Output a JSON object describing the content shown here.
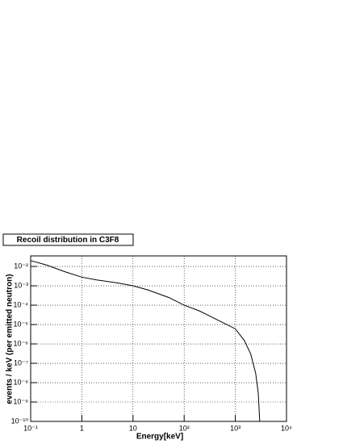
{
  "chart_data": {
    "type": "line",
    "title": "Recoil distribution in C3F8",
    "x_label": "Energy[keV]",
    "y_label": "events / keV (per emitted neutron)",
    "log_x": true,
    "log_y": true,
    "grid": true,
    "x": [
      0.1,
      0.2,
      0.5,
      1,
      2,
      5,
      10,
      20,
      50,
      100,
      200,
      500,
      1000,
      1500,
      2000,
      2500,
      2800,
      3000
    ],
    "series": [
      {
        "color": "#000000",
        "values": [
          0.02,
          0.012,
          0.005,
          0.0028,
          0.002,
          0.0014,
          0.001,
          0.0006,
          0.00025,
          0.0001,
          5e-05,
          1.5e-05,
          6e-06,
          1.5e-06,
          3e-07,
          3e-08,
          3e-09,
          1e-10
        ]
      }
    ],
    "xlim": [
      0.1,
      10000
    ],
    "xticks": [
      {
        "value": 0.1,
        "label": "10⁻¹"
      },
      1,
      10,
      {
        "value": 100,
        "label": "10²"
      },
      {
        "value": 1000,
        "label": "10³"
      },
      {
        "value": 10000,
        "label": "10⁴"
      }
    ],
    "ylim": [
      1e-10,
      0.035
    ],
    "yticks": [
      {
        "value": 1e-10,
        "label": "10⁻¹⁰"
      },
      {
        "value": 1e-09,
        "label": "10⁻⁹"
      },
      {
        "value": 1e-08,
        "label": "10⁻⁸"
      },
      {
        "value": 1e-07,
        "label": "10⁻⁷"
      },
      {
        "value": 1e-06,
        "label": "10⁻⁶"
      },
      {
        "value": 1e-05,
        "label": "10⁻⁵"
      },
      {
        "value": 0.0001,
        "label": "10⁻⁴"
      },
      {
        "value": 0.001,
        "label": "10⁻³"
      },
      {
        "value": 0.01,
        "label": "10⁻²"
      }
    ]
  }
}
